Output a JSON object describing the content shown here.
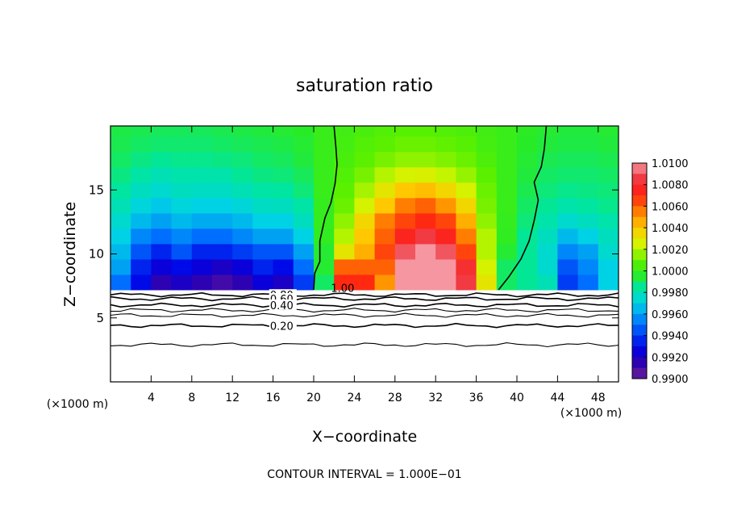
{
  "chart_data": {
    "type": "heatmap",
    "title": "saturation ratio",
    "xlabel": "X−coordinate",
    "ylabel": "Z−coordinate",
    "x_unit_left": "(×1000 m)",
    "x_unit_right": "(×1000 m)",
    "xlim": [
      0,
      50
    ],
    "ylim": [
      0,
      20
    ],
    "xticks": [
      4,
      8,
      12,
      16,
      20,
      24,
      28,
      32,
      36,
      40,
      44,
      48
    ],
    "yticks": [
      5,
      10,
      15
    ],
    "colorbar": {
      "min": 0.99,
      "max": 1.01,
      "ticks": [
        "1.0100",
        "1.0080",
        "1.0060",
        "1.0040",
        "1.0020",
        "1.0000",
        "0.9980",
        "0.9960",
        "0.9940",
        "0.9920",
        "0.9900"
      ]
    },
    "field_base_z": 7.2,
    "cells": {
      "x": [
        0,
        2,
        4,
        6,
        8,
        10,
        12,
        14,
        16,
        18,
        20,
        22,
        24,
        26,
        28,
        30,
        32,
        34,
        36,
        38,
        40,
        42,
        44,
        46,
        48
      ],
      "z": [
        7.2,
        8.4,
        9.6,
        10.8,
        12.0,
        13.2,
        14.4,
        15.6,
        16.8,
        18.0,
        19.2
      ],
      "values": [
        [
          0.995,
          0.993,
          0.9915,
          0.992,
          0.9915,
          0.991,
          0.9915,
          0.9925,
          0.992,
          0.994,
          0.999,
          1.007,
          1.007,
          1.005,
          1.01,
          1.01,
          1.01,
          1.0085,
          1.003,
          0.999,
          0.9985,
          0.998,
          0.994,
          0.995,
          0.997
        ],
        [
          0.996,
          0.9935,
          0.9925,
          0.993,
          0.9925,
          0.992,
          0.9925,
          0.9935,
          0.993,
          0.995,
          0.9995,
          1.006,
          1.006,
          1.006,
          1.01,
          1.01,
          1.01,
          1.008,
          1.0025,
          0.999,
          0.9985,
          0.9975,
          0.9945,
          0.9955,
          0.997
        ],
        [
          0.9965,
          0.9945,
          0.9935,
          0.9945,
          0.9935,
          0.9935,
          0.994,
          0.9945,
          0.9945,
          0.996,
          0.9995,
          1.003,
          1.0045,
          1.0065,
          1.009,
          1.01,
          1.009,
          1.0065,
          1.002,
          0.9995,
          0.9985,
          0.9975,
          0.9955,
          0.996,
          0.9975
        ],
        [
          0.997,
          0.9955,
          0.995,
          0.9955,
          0.995,
          0.995,
          0.9955,
          0.996,
          0.996,
          0.997,
          0.9998,
          1.002,
          1.004,
          1.006,
          1.0075,
          1.0085,
          1.0075,
          1.0055,
          1.002,
          0.9998,
          0.9985,
          0.9978,
          0.9965,
          0.997,
          0.9978
        ],
        [
          0.9975,
          0.9965,
          0.996,
          0.9965,
          0.9962,
          0.9962,
          0.9965,
          0.997,
          0.997,
          0.9978,
          0.9999,
          1.0015,
          1.0035,
          1.0055,
          1.0065,
          1.007,
          1.0065,
          1.0045,
          1.0015,
          0.9999,
          0.9988,
          0.9982,
          0.9975,
          0.9978,
          0.9982
        ],
        [
          0.998,
          0.9972,
          0.9968,
          0.9972,
          0.997,
          0.997,
          0.9973,
          0.9977,
          0.9978,
          0.9983,
          0.9999,
          1.001,
          1.0025,
          1.004,
          1.0055,
          1.006,
          1.005,
          1.0035,
          1.0012,
          1.0,
          0.999,
          0.9985,
          0.9982,
          0.9984,
          0.9986
        ],
        [
          0.9984,
          0.9978,
          0.9975,
          0.9978,
          0.9977,
          0.9977,
          0.998,
          0.9983,
          0.9984,
          0.9988,
          1.0,
          1.0008,
          1.0018,
          1.003,
          1.004,
          1.0042,
          1.0035,
          1.0025,
          1.001,
          1.0,
          0.9992,
          0.9988,
          0.9986,
          0.9987,
          0.9988
        ],
        [
          0.9987,
          0.9983,
          0.998,
          0.9982,
          0.9982,
          0.9982,
          0.9985,
          0.9987,
          0.9988,
          0.9991,
          1.0,
          1.0006,
          1.0012,
          1.002,
          1.0025,
          1.0026,
          1.0022,
          1.0016,
          1.0008,
          1.0,
          0.9994,
          0.999,
          0.9989,
          0.9989,
          0.999
        ],
        [
          0.999,
          0.9987,
          0.9985,
          0.9986,
          0.9986,
          0.9987,
          0.9988,
          0.999,
          0.9991,
          0.9994,
          1.0,
          1.0004,
          1.0008,
          1.0012,
          1.0015,
          1.0015,
          1.0013,
          1.001,
          1.0005,
          1.0,
          0.9995,
          0.9992,
          0.9991,
          0.9991,
          0.9992
        ],
        [
          0.9992,
          0.999,
          0.9989,
          0.9989,
          0.9989,
          0.999,
          0.9991,
          0.9992,
          0.9993,
          0.9995,
          1.0,
          1.0003,
          1.0006,
          1.0008,
          1.001,
          1.001,
          1.0009,
          1.0007,
          1.0003,
          1.0,
          0.9996,
          0.9994,
          0.9993,
          0.9993,
          0.9994
        ],
        [
          0.9993,
          0.9992,
          0.9991,
          0.9991,
          0.9991,
          0.9992,
          0.9993,
          0.9994,
          0.9995,
          0.9996,
          1.0,
          1.0002,
          1.0004,
          1.0006,
          1.0007,
          1.0007,
          1.0006,
          1.0005,
          1.0002,
          1.0,
          0.9997,
          0.9995,
          0.9994,
          0.9994,
          0.9995
        ]
      ]
    },
    "contour_1_00": {
      "label": "1.00",
      "left_branch": [
        [
          20.0,
          7.2
        ],
        [
          20.1,
          8.5
        ],
        [
          20.6,
          9.4
        ],
        [
          20.6,
          11.0
        ],
        [
          21.1,
          12.8
        ],
        [
          21.7,
          14.0
        ],
        [
          22.1,
          15.5
        ],
        [
          22.3,
          17.0
        ],
        [
          22.2,
          18.2
        ],
        [
          22.0,
          20.0
        ]
      ],
      "right_branch": [
        [
          38.2,
          7.2
        ],
        [
          39.2,
          8.2
        ],
        [
          40.4,
          9.6
        ],
        [
          41.2,
          11.0
        ],
        [
          41.7,
          12.6
        ],
        [
          42.1,
          14.2
        ],
        [
          41.7,
          15.6
        ],
        [
          42.4,
          16.8
        ],
        [
          42.7,
          18.2
        ],
        [
          42.9,
          20.0
        ]
      ]
    },
    "contours_lower": [
      {
        "label": "0.80",
        "z": 6.8,
        "show_label": true
      },
      {
        "label": "0.60",
        "z": 6.5,
        "show_label": true
      },
      {
        "label": "0.40",
        "z": 6.0,
        "show_label": true
      },
      {
        "label": "",
        "z": 5.6,
        "show_label": false
      },
      {
        "label": "",
        "z": 5.2,
        "show_label": false
      },
      {
        "label": "0.20",
        "z": 4.4,
        "show_label": true
      },
      {
        "label": "",
        "z": 2.9,
        "show_label": false
      }
    ],
    "footer": "CONTOUR INTERVAL = 1.000E−01"
  }
}
